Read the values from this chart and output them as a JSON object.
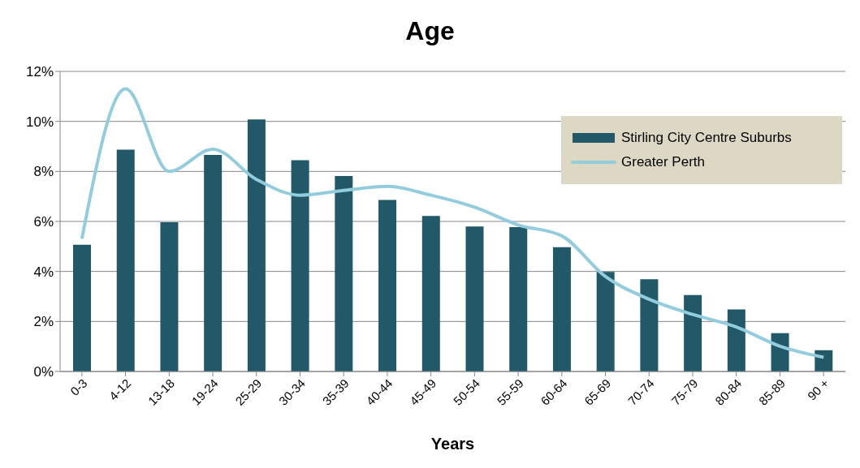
{
  "chart_data": {
    "type": "bar",
    "title": "Age",
    "xlabel": "Years",
    "categories": [
      "0-3",
      "4-12",
      "13-18",
      "19-24",
      "25-29",
      "30-34",
      "35-39",
      "40-44",
      "45-49",
      "50-54",
      "55-59",
      "60-64",
      "65-69",
      "70-74",
      "75-79",
      "80-84",
      "85-89",
      "90 +"
    ],
    "series": [
      {
        "name": "Stirling City Centre Suburbs",
        "color": "#215968",
        "values": [
          5.07,
          8.87,
          5.97,
          8.66,
          10.08,
          8.45,
          7.82,
          6.86,
          6.22,
          5.8,
          5.77,
          4.97,
          3.98,
          3.69,
          3.06,
          2.48,
          1.53,
          0.85
        ]
      },
      {
        "name": "Greater Perth",
        "type": "line",
        "color": "#93cddd",
        "values": [
          5.31,
          11.3,
          8.0,
          8.89,
          7.68,
          7.05,
          7.24,
          7.4,
          7.05,
          6.57,
          5.86,
          5.42,
          3.8,
          2.89,
          2.28,
          1.78,
          1.01,
          0.57
        ]
      }
    ],
    "ylim": [
      0,
      12
    ],
    "yticks": [
      {
        "value": 0,
        "label": "0%"
      },
      {
        "value": 2,
        "label": "2%"
      },
      {
        "value": 4,
        "label": "4%"
      },
      {
        "value": 6,
        "label": "6%"
      },
      {
        "value": 8,
        "label": "8%"
      },
      {
        "value": 10,
        "label": "10%"
      },
      {
        "value": 12,
        "label": "12%"
      }
    ],
    "grid": "y",
    "legend": "top right",
    "marker": "none"
  }
}
